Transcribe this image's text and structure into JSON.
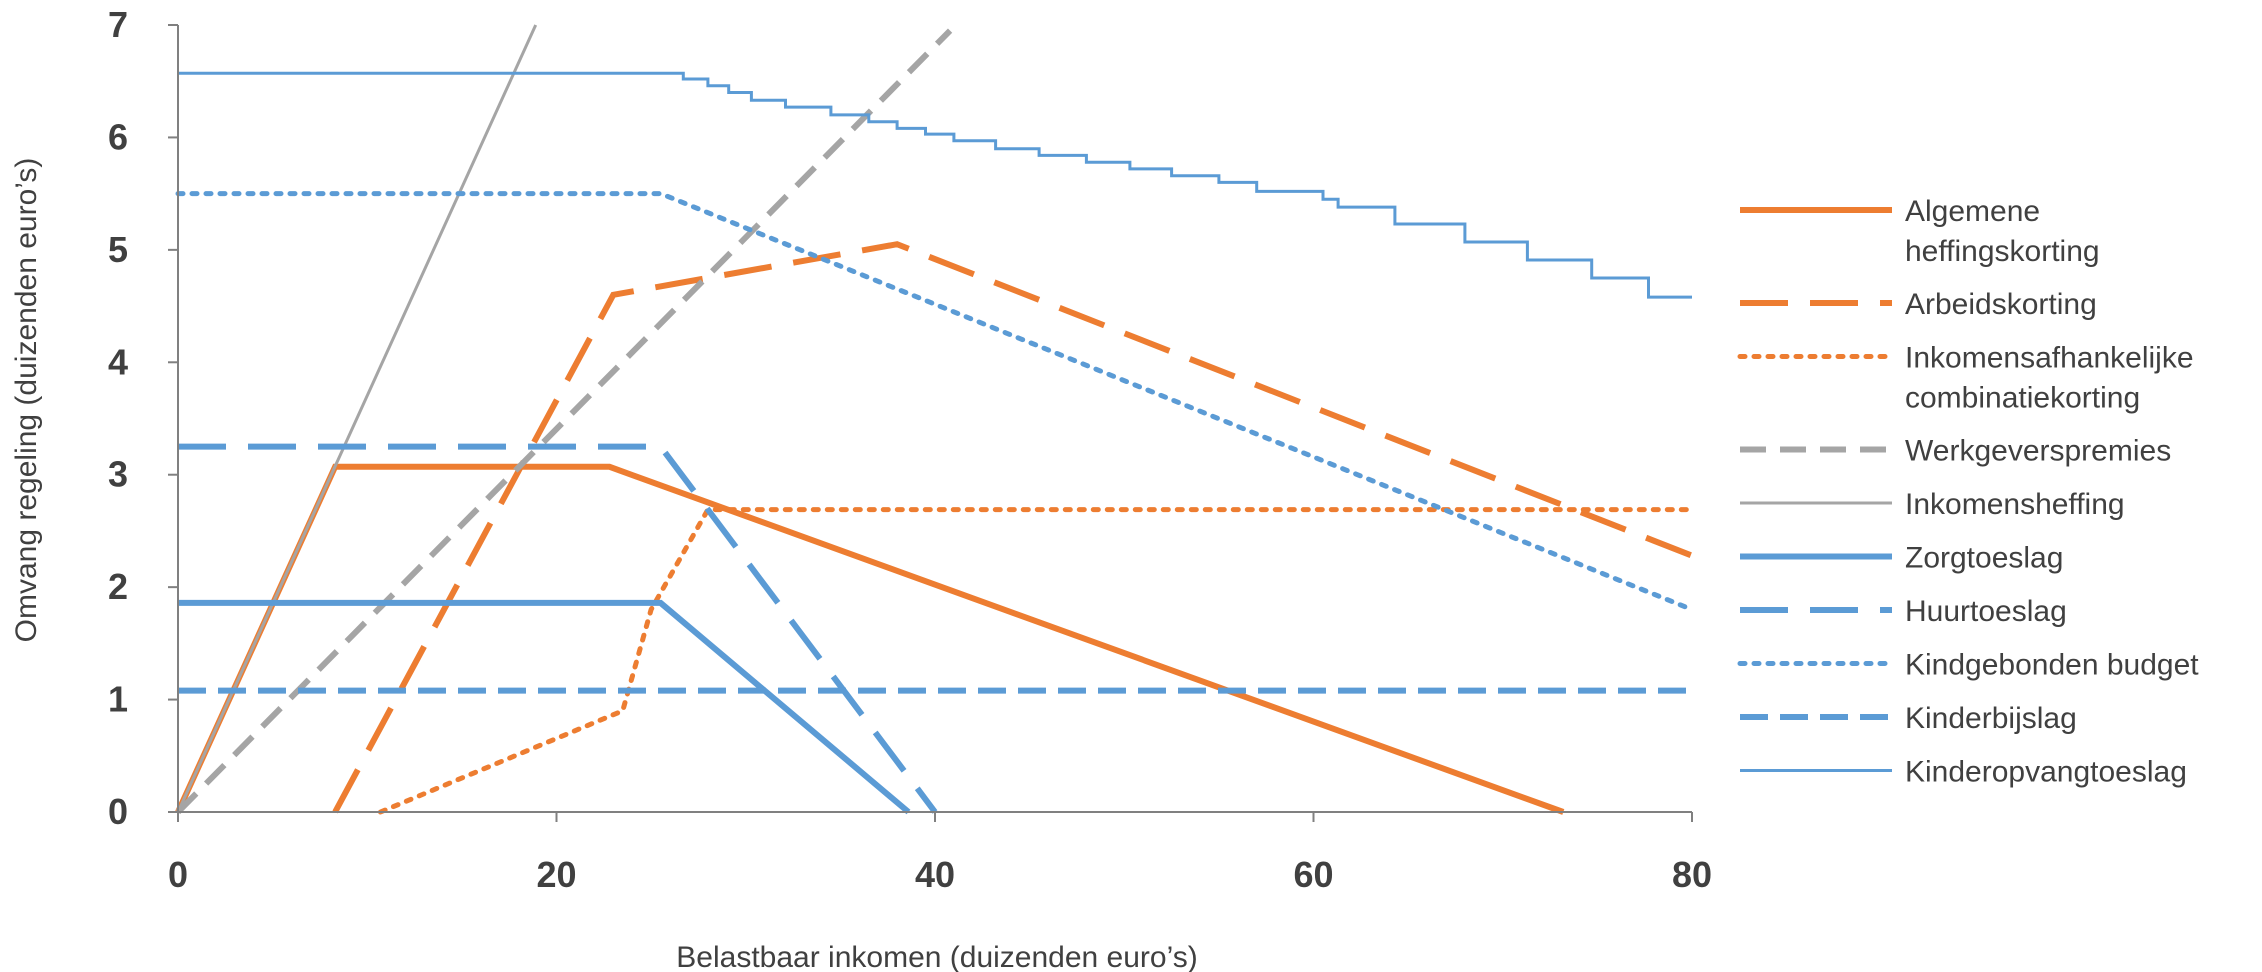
{
  "chart_data": {
    "type": "line",
    "title": "",
    "xlabel": "Belastbaar inkomen (duizenden euro’s)",
    "ylabel": "Omvang regeling (duizenden euro’s)",
    "xlim": [
      0,
      80
    ],
    "ylim": [
      0,
      7
    ],
    "xticks": [
      "0",
      "20",
      "40",
      "60",
      "80"
    ],
    "yticks": [
      "0",
      "1",
      "2",
      "3",
      "4",
      "5",
      "6",
      "7"
    ],
    "grid": false,
    "legend_position": "right",
    "series": [
      {
        "name": "Algemene heffingskorting",
        "legend_lines": [
          "Algemene",
          "heffingskorting"
        ],
        "color": "#ED7D31",
        "style": "solid",
        "weight": "thick",
        "points": [
          [
            0,
            0
          ],
          [
            8.3,
            3.07
          ],
          [
            22.8,
            3.07
          ],
          [
            73.2,
            0
          ]
        ]
      },
      {
        "name": "Arbeidskorting",
        "legend_lines": [
          "Arbeidskorting"
        ],
        "color": "#ED7D31",
        "style": "longdash",
        "weight": "thick",
        "points": [
          [
            8.3,
            0
          ],
          [
            23,
            4.6
          ],
          [
            38,
            5.05
          ],
          [
            80,
            2.28
          ]
        ]
      },
      {
        "name": "Inkomensafhankelijke combinatiekorting",
        "legend_lines": [
          "Inkomensafhankelijke",
          "combinatiekorting"
        ],
        "color": "#ED7D31",
        "style": "dotted",
        "weight": "thick",
        "points": [
          [
            10.7,
            0
          ],
          [
            23.5,
            0.9
          ],
          [
            25,
            1.8
          ],
          [
            28,
            2.69
          ],
          [
            80,
            2.69
          ]
        ]
      },
      {
        "name": "Werkgeverspremies",
        "legend_lines": [
          "Werkgeverspremies"
        ],
        "color": "#A5A5A5",
        "style": "dash",
        "weight": "thick",
        "points": [
          [
            0,
            0
          ],
          [
            40.8,
            6.95
          ]
        ]
      },
      {
        "name": "Inkomensheffing",
        "legend_lines": [
          "Inkomensheffing"
        ],
        "color": "#A5A5A5",
        "style": "solid",
        "weight": "thin",
        "points": [
          [
            0,
            0
          ],
          [
            18.9,
            7.0
          ]
        ]
      },
      {
        "name": "Zorgtoeslag",
        "legend_lines": [
          "Zorgtoeslag"
        ],
        "color": "#5B9BD5",
        "style": "solid",
        "weight": "thick",
        "points": [
          [
            0,
            1.86
          ],
          [
            25.5,
            1.86
          ],
          [
            38.6,
            0
          ]
        ]
      },
      {
        "name": "Huurtoeslag",
        "legend_lines": [
          "Huurtoeslag"
        ],
        "color": "#5B9BD5",
        "style": "longdash",
        "weight": "thick",
        "points": [
          [
            0,
            3.25
          ],
          [
            25.5,
            3.25
          ],
          [
            40,
            0
          ]
        ]
      },
      {
        "name": "Kindgebonden budget",
        "legend_lines": [
          "Kindgebonden budget"
        ],
        "color": "#5B9BD5",
        "style": "dotted",
        "weight": "thick",
        "points": [
          [
            0,
            5.5
          ],
          [
            25.5,
            5.5
          ],
          [
            80,
            1.8
          ]
        ]
      },
      {
        "name": "Kinderbijslag",
        "legend_lines": [
          "Kinderbijslag"
        ],
        "color": "#5B9BD5",
        "style": "dash",
        "weight": "thick",
        "points": [
          [
            0,
            1.08
          ],
          [
            80,
            1.08
          ]
        ]
      },
      {
        "name": "Kinderopvangtoeslag",
        "legend_lines": [
          "Kinderopvangtoeslag"
        ],
        "color": "#5B9BD5",
        "style": "solid",
        "weight": "thin",
        "points": [
          [
            0,
            6.57
          ],
          [
            26.7,
            6.57
          ],
          [
            26.7,
            6.52
          ],
          [
            28,
            6.52
          ],
          [
            28,
            6.46
          ],
          [
            29.1,
            6.46
          ],
          [
            29.1,
            6.4
          ],
          [
            30.3,
            6.4
          ],
          [
            30.3,
            6.33
          ],
          [
            32.1,
            6.33
          ],
          [
            32.1,
            6.27
          ],
          [
            34.5,
            6.27
          ],
          [
            34.5,
            6.2
          ],
          [
            36.5,
            6.2
          ],
          [
            36.5,
            6.14
          ],
          [
            38,
            6.14
          ],
          [
            38,
            6.08
          ],
          [
            39.5,
            6.08
          ],
          [
            39.5,
            6.03
          ],
          [
            41,
            6.03
          ],
          [
            41,
            5.97
          ],
          [
            43.2,
            5.97
          ],
          [
            43.2,
            5.9
          ],
          [
            45.5,
            5.9
          ],
          [
            45.5,
            5.84
          ],
          [
            48,
            5.84
          ],
          [
            48,
            5.78
          ],
          [
            50.3,
            5.78
          ],
          [
            50.3,
            5.72
          ],
          [
            52.5,
            5.72
          ],
          [
            52.5,
            5.66
          ],
          [
            55,
            5.66
          ],
          [
            55,
            5.6
          ],
          [
            57,
            5.6
          ],
          [
            57,
            5.52
          ],
          [
            60.5,
            5.52
          ],
          [
            60.5,
            5.45
          ],
          [
            61.3,
            5.45
          ],
          [
            61.3,
            5.38
          ],
          [
            64.3,
            5.38
          ],
          [
            64.3,
            5.23
          ],
          [
            68,
            5.23
          ],
          [
            68,
            5.07
          ],
          [
            71.3,
            5.07
          ],
          [
            71.3,
            4.91
          ],
          [
            74.7,
            4.91
          ],
          [
            74.7,
            4.75
          ],
          [
            77.7,
            4.75
          ],
          [
            77.7,
            4.58
          ],
          [
            80,
            4.58
          ]
        ]
      }
    ]
  }
}
